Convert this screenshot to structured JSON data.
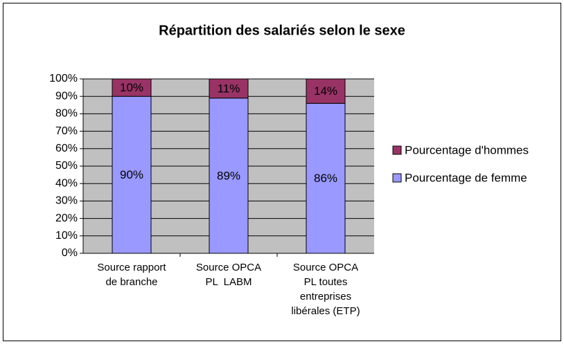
{
  "chart_data": {
    "type": "stacked_bar",
    "title": "Répartition des salariés selon le sexe",
    "categories": [
      "Source rapport de branche",
      "Source OPCA PL  LABM",
      "Source OPCA PL toutes entreprises libérales (ETP)"
    ],
    "series": [
      {
        "name": "Pourcentage de femme",
        "color": "#9999ff",
        "values": [
          90,
          89,
          86
        ],
        "value_labels": [
          "90%",
          "89%",
          "86%"
        ]
      },
      {
        "name": "Pourcentage d'hommes",
        "color": "#993366",
        "values": [
          10,
          11,
          14
        ],
        "value_labels": [
          "10%",
          "11%",
          "14%"
        ]
      }
    ],
    "ylim": [
      0,
      100
    ],
    "yticks": [
      {
        "value": 0,
        "label": "0%"
      },
      {
        "value": 10,
        "label": "10%"
      },
      {
        "value": 20,
        "label": "20%"
      },
      {
        "value": 30,
        "label": "30%"
      },
      {
        "value": 40,
        "label": "40%"
      },
      {
        "value": 50,
        "label": "50%"
      },
      {
        "value": 60,
        "label": "60%"
      },
      {
        "value": 70,
        "label": "70%"
      },
      {
        "value": 80,
        "label": "80%"
      },
      {
        "value": 90,
        "label": "90%"
      },
      {
        "value": 100,
        "label": "100%"
      }
    ],
    "grid": true,
    "legend": "right",
    "plot_background": "#c0c0c0"
  }
}
